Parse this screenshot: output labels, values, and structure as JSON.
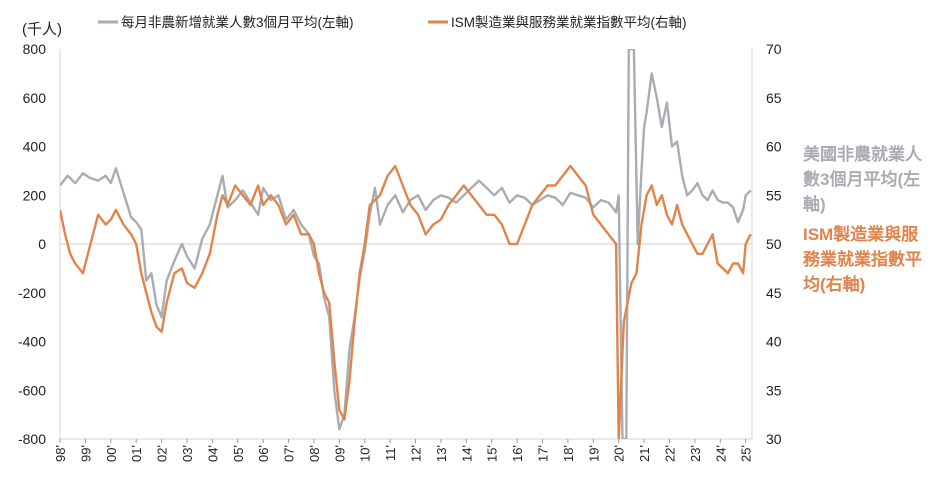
{
  "chart_data": {
    "type": "line",
    "unit_label": "(千人)",
    "legend": [
      {
        "name": "每月非農新增就業人數3個月平均(左軸)",
        "color": "#a9adb3"
      },
      {
        "name": "ISM製造業與服務業就業指數平均(右軸)",
        "color": "#e0844b"
      }
    ],
    "right_annotations": {
      "gray": "美國非農就業人數3個月平均(左軸)",
      "orange": "ISM製造業與服務業就業指數平均(右軸)"
    },
    "x_ticks": [
      "98'",
      "99'",
      "00'",
      "01'",
      "02'",
      "03'",
      "04'",
      "05'",
      "06'",
      "07'",
      "08'",
      "09'",
      "10'",
      "11'",
      "12'",
      "13'",
      "14'",
      "15'",
      "16'",
      "17'",
      "18'",
      "19'",
      "20'",
      "21'",
      "22'",
      "23'",
      "24'",
      "25'"
    ],
    "y_left": {
      "min": -800,
      "max": 800,
      "ticks": [
        -800,
        -600,
        -400,
        -200,
        0,
        200,
        400,
        600,
        800
      ]
    },
    "y_right": {
      "min": 30,
      "max": 70,
      "ticks": [
        30,
        35,
        40,
        45,
        50,
        55,
        60,
        65,
        70
      ]
    },
    "x_range": [
      1998.0,
      2025.25
    ],
    "series": [
      {
        "name": "每月非農新增就業人數3個月平均(左軸)",
        "axis": "left",
        "color": "#a9adb3",
        "x": [
          1998.0,
          1998.3,
          1998.6,
          1998.9,
          1999.2,
          1999.5,
          1999.8,
          2000.0,
          2000.2,
          2000.5,
          2000.8,
          2001.0,
          2001.2,
          2001.4,
          2001.6,
          2001.8,
          2002.0,
          2002.2,
          2002.5,
          2002.8,
          2003.0,
          2003.3,
          2003.6,
          2003.9,
          2004.2,
          2004.4,
          2004.6,
          2004.9,
          2005.2,
          2005.5,
          2005.8,
          2006.0,
          2006.3,
          2006.6,
          2006.9,
          2007.2,
          2007.5,
          2007.8,
          2008.0,
          2008.2,
          2008.4,
          2008.6,
          2008.8,
          2009.0,
          2009.2,
          2009.4,
          2009.6,
          2009.8,
          2010.0,
          2010.2,
          2010.4,
          2010.6,
          2010.9,
          2011.2,
          2011.5,
          2011.8,
          2012.1,
          2012.4,
          2012.7,
          2013.0,
          2013.3,
          2013.6,
          2013.9,
          2014.2,
          2014.5,
          2014.8,
          2015.1,
          2015.4,
          2015.7,
          2016.0,
          2016.3,
          2016.6,
          2016.9,
          2017.2,
          2017.5,
          2017.8,
          2018.1,
          2018.4,
          2018.7,
          2019.0,
          2019.3,
          2019.6,
          2019.9,
          2020.0,
          2020.15,
          2020.3,
          2020.4,
          2020.5,
          2020.6,
          2020.75,
          2020.9,
          2021.0,
          2021.1,
          2021.3,
          2021.5,
          2021.7,
          2021.9,
          2022.1,
          2022.3,
          2022.5,
          2022.7,
          2022.9,
          2023.1,
          2023.3,
          2023.5,
          2023.7,
          2023.9,
          2024.1,
          2024.3,
          2024.5,
          2024.7,
          2024.9,
          2025.0,
          2025.2
        ],
        "y": [
          240,
          280,
          250,
          290,
          270,
          260,
          280,
          250,
          310,
          210,
          110,
          90,
          60,
          -150,
          -120,
          -250,
          -300,
          -150,
          -70,
          0,
          -50,
          -100,
          20,
          80,
          200,
          280,
          150,
          180,
          220,
          170,
          120,
          230,
          180,
          200,
          100,
          140,
          80,
          40,
          -50,
          -80,
          -220,
          -300,
          -600,
          -760,
          -700,
          -430,
          -300,
          -140,
          -30,
          120,
          230,
          80,
          160,
          200,
          130,
          180,
          200,
          140,
          180,
          200,
          190,
          170,
          200,
          230,
          260,
          230,
          200,
          230,
          170,
          200,
          190,
          160,
          180,
          200,
          190,
          160,
          210,
          200,
          190,
          150,
          180,
          170,
          130,
          200,
          -800,
          -800,
          800,
          800,
          800,
          0,
          300,
          480,
          540,
          700,
          600,
          480,
          580,
          400,
          420,
          280,
          200,
          220,
          250,
          200,
          180,
          220,
          180,
          170,
          170,
          150,
          90,
          140,
          200,
          220
        ]
      },
      {
        "name": "ISM製造業與服務業就業指數平均(右軸)",
        "axis": "right",
        "color": "#e0844b",
        "x": [
          1998.0,
          1998.2,
          1998.4,
          1998.6,
          1998.9,
          1999.2,
          1999.5,
          1999.8,
          2000.0,
          2000.2,
          2000.5,
          2000.8,
          2001.0,
          2001.2,
          2001.4,
          2001.6,
          2001.8,
          2002.0,
          2002.2,
          2002.5,
          2002.8,
          2003.0,
          2003.3,
          2003.6,
          2003.9,
          2004.2,
          2004.4,
          2004.6,
          2004.9,
          2005.2,
          2005.5,
          2005.8,
          2006.0,
          2006.3,
          2006.6,
          2006.9,
          2007.2,
          2007.5,
          2007.8,
          2008.0,
          2008.2,
          2008.4,
          2008.6,
          2008.8,
          2009.0,
          2009.2,
          2009.4,
          2009.6,
          2009.8,
          2010.0,
          2010.2,
          2010.4,
          2010.6,
          2010.9,
          2011.2,
          2011.5,
          2011.8,
          2012.1,
          2012.4,
          2012.7,
          2013.0,
          2013.3,
          2013.6,
          2013.9,
          2014.2,
          2014.5,
          2014.8,
          2015.1,
          2015.4,
          2015.7,
          2016.0,
          2016.3,
          2016.6,
          2016.9,
          2017.2,
          2017.5,
          2017.8,
          2018.1,
          2018.4,
          2018.7,
          2019.0,
          2019.3,
          2019.6,
          2019.9,
          2020.0,
          2020.2,
          2020.35,
          2020.5,
          2020.7,
          2020.9,
          2021.1,
          2021.3,
          2021.5,
          2021.7,
          2021.9,
          2022.1,
          2022.3,
          2022.5,
          2022.7,
          2022.9,
          2023.1,
          2023.3,
          2023.5,
          2023.7,
          2023.9,
          2024.1,
          2024.3,
          2024.5,
          2024.7,
          2024.9,
          2025.0,
          2025.2
        ],
        "y": [
          53.5,
          51,
          49,
          48,
          47,
          50,
          53,
          52,
          52.5,
          53.5,
          52,
          51,
          50,
          47,
          45,
          43,
          41.5,
          41,
          44,
          47,
          47.5,
          46,
          45.5,
          47,
          49,
          53,
          55,
          54,
          56,
          55,
          54,
          56,
          54,
          55,
          54,
          52,
          53,
          51,
          51,
          50,
          47,
          45,
          44,
          38,
          33,
          32,
          36,
          42,
          47,
          50,
          54,
          54.5,
          55,
          57,
          58,
          56,
          54,
          53,
          51,
          52,
          52.5,
          54,
          55,
          56,
          55,
          54,
          53,
          53,
          52,
          50,
          50,
          52,
          54,
          55,
          56,
          56,
          57,
          58,
          57,
          56,
          53,
          52,
          51,
          50,
          30,
          42,
          44,
          46,
          47,
          52,
          55,
          56,
          54,
          55,
          53,
          52,
          54,
          52,
          51,
          50,
          49,
          49,
          50,
          51,
          48,
          47.5,
          47,
          48,
          48,
          47,
          50,
          51
        ]
      }
    ]
  }
}
